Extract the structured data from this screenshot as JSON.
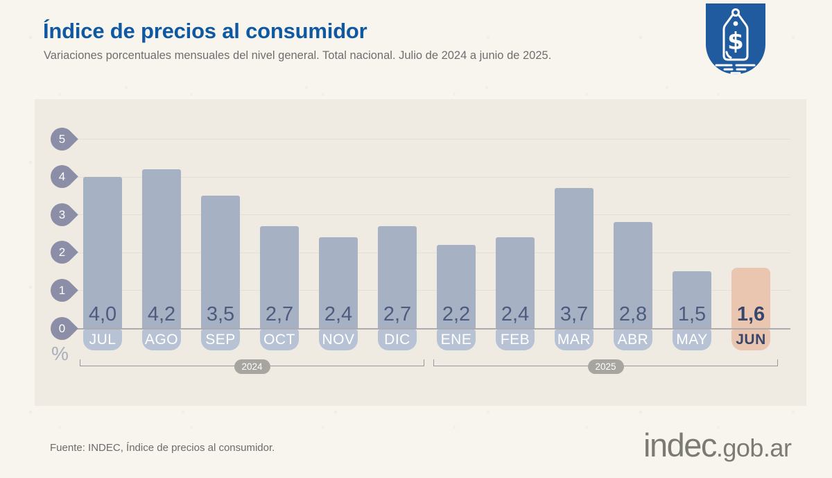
{
  "header": {
    "title": "Índice de precios al consumidor",
    "subtitle": "Variaciones porcentuales mensuales del nivel general. Total nacional. Julio de 2024 a junio de 2025."
  },
  "badge": {
    "icon": "price-tag-icon"
  },
  "chart_data": {
    "type": "bar",
    "title": "Índice de precios al consumidor",
    "categories": [
      "JUL",
      "AGO",
      "SEP",
      "OCT",
      "NOV",
      "DIC",
      "ENE",
      "FEB",
      "MAR",
      "ABR",
      "MAY",
      "JUN"
    ],
    "values": [
      4.0,
      4.2,
      3.5,
      2.7,
      2.4,
      2.7,
      2.2,
      2.4,
      3.7,
      2.8,
      1.5,
      1.6
    ],
    "value_labels": [
      "4,0",
      "4,2",
      "3,5",
      "2,7",
      "2,4",
      "2,7",
      "2,2",
      "2,4",
      "3,7",
      "2,8",
      "1,5",
      "1,6"
    ],
    "highlight_index": 11,
    "y_ticks": [
      5,
      4,
      3,
      2,
      1,
      0
    ],
    "ylim": [
      0,
      5
    ],
    "ylabel": "%",
    "grid": true,
    "groups": [
      {
        "label": "2024",
        "start": 0,
        "end": 5
      },
      {
        "label": "2025",
        "start": 6,
        "end": 11
      }
    ],
    "colors": {
      "bar": "#a6b2c4",
      "bar_highlight": "#eac5b0",
      "pill": "#b7c2d5",
      "value_text": "#4e5b7e",
      "value_text_highlight": "#39466b",
      "marker": "#8b8ea6",
      "year_pill": "#a7a5a0"
    }
  },
  "brand": {
    "title_blue": "#0f59a3",
    "badge_blue": "#1f5b9e",
    "logo_gray": "#7b7b73"
  },
  "footer": {
    "source": "Fuente: INDEC, Índice de precios al consumidor.",
    "logo_main": "indec",
    "logo_suffix": ".gob.ar"
  }
}
